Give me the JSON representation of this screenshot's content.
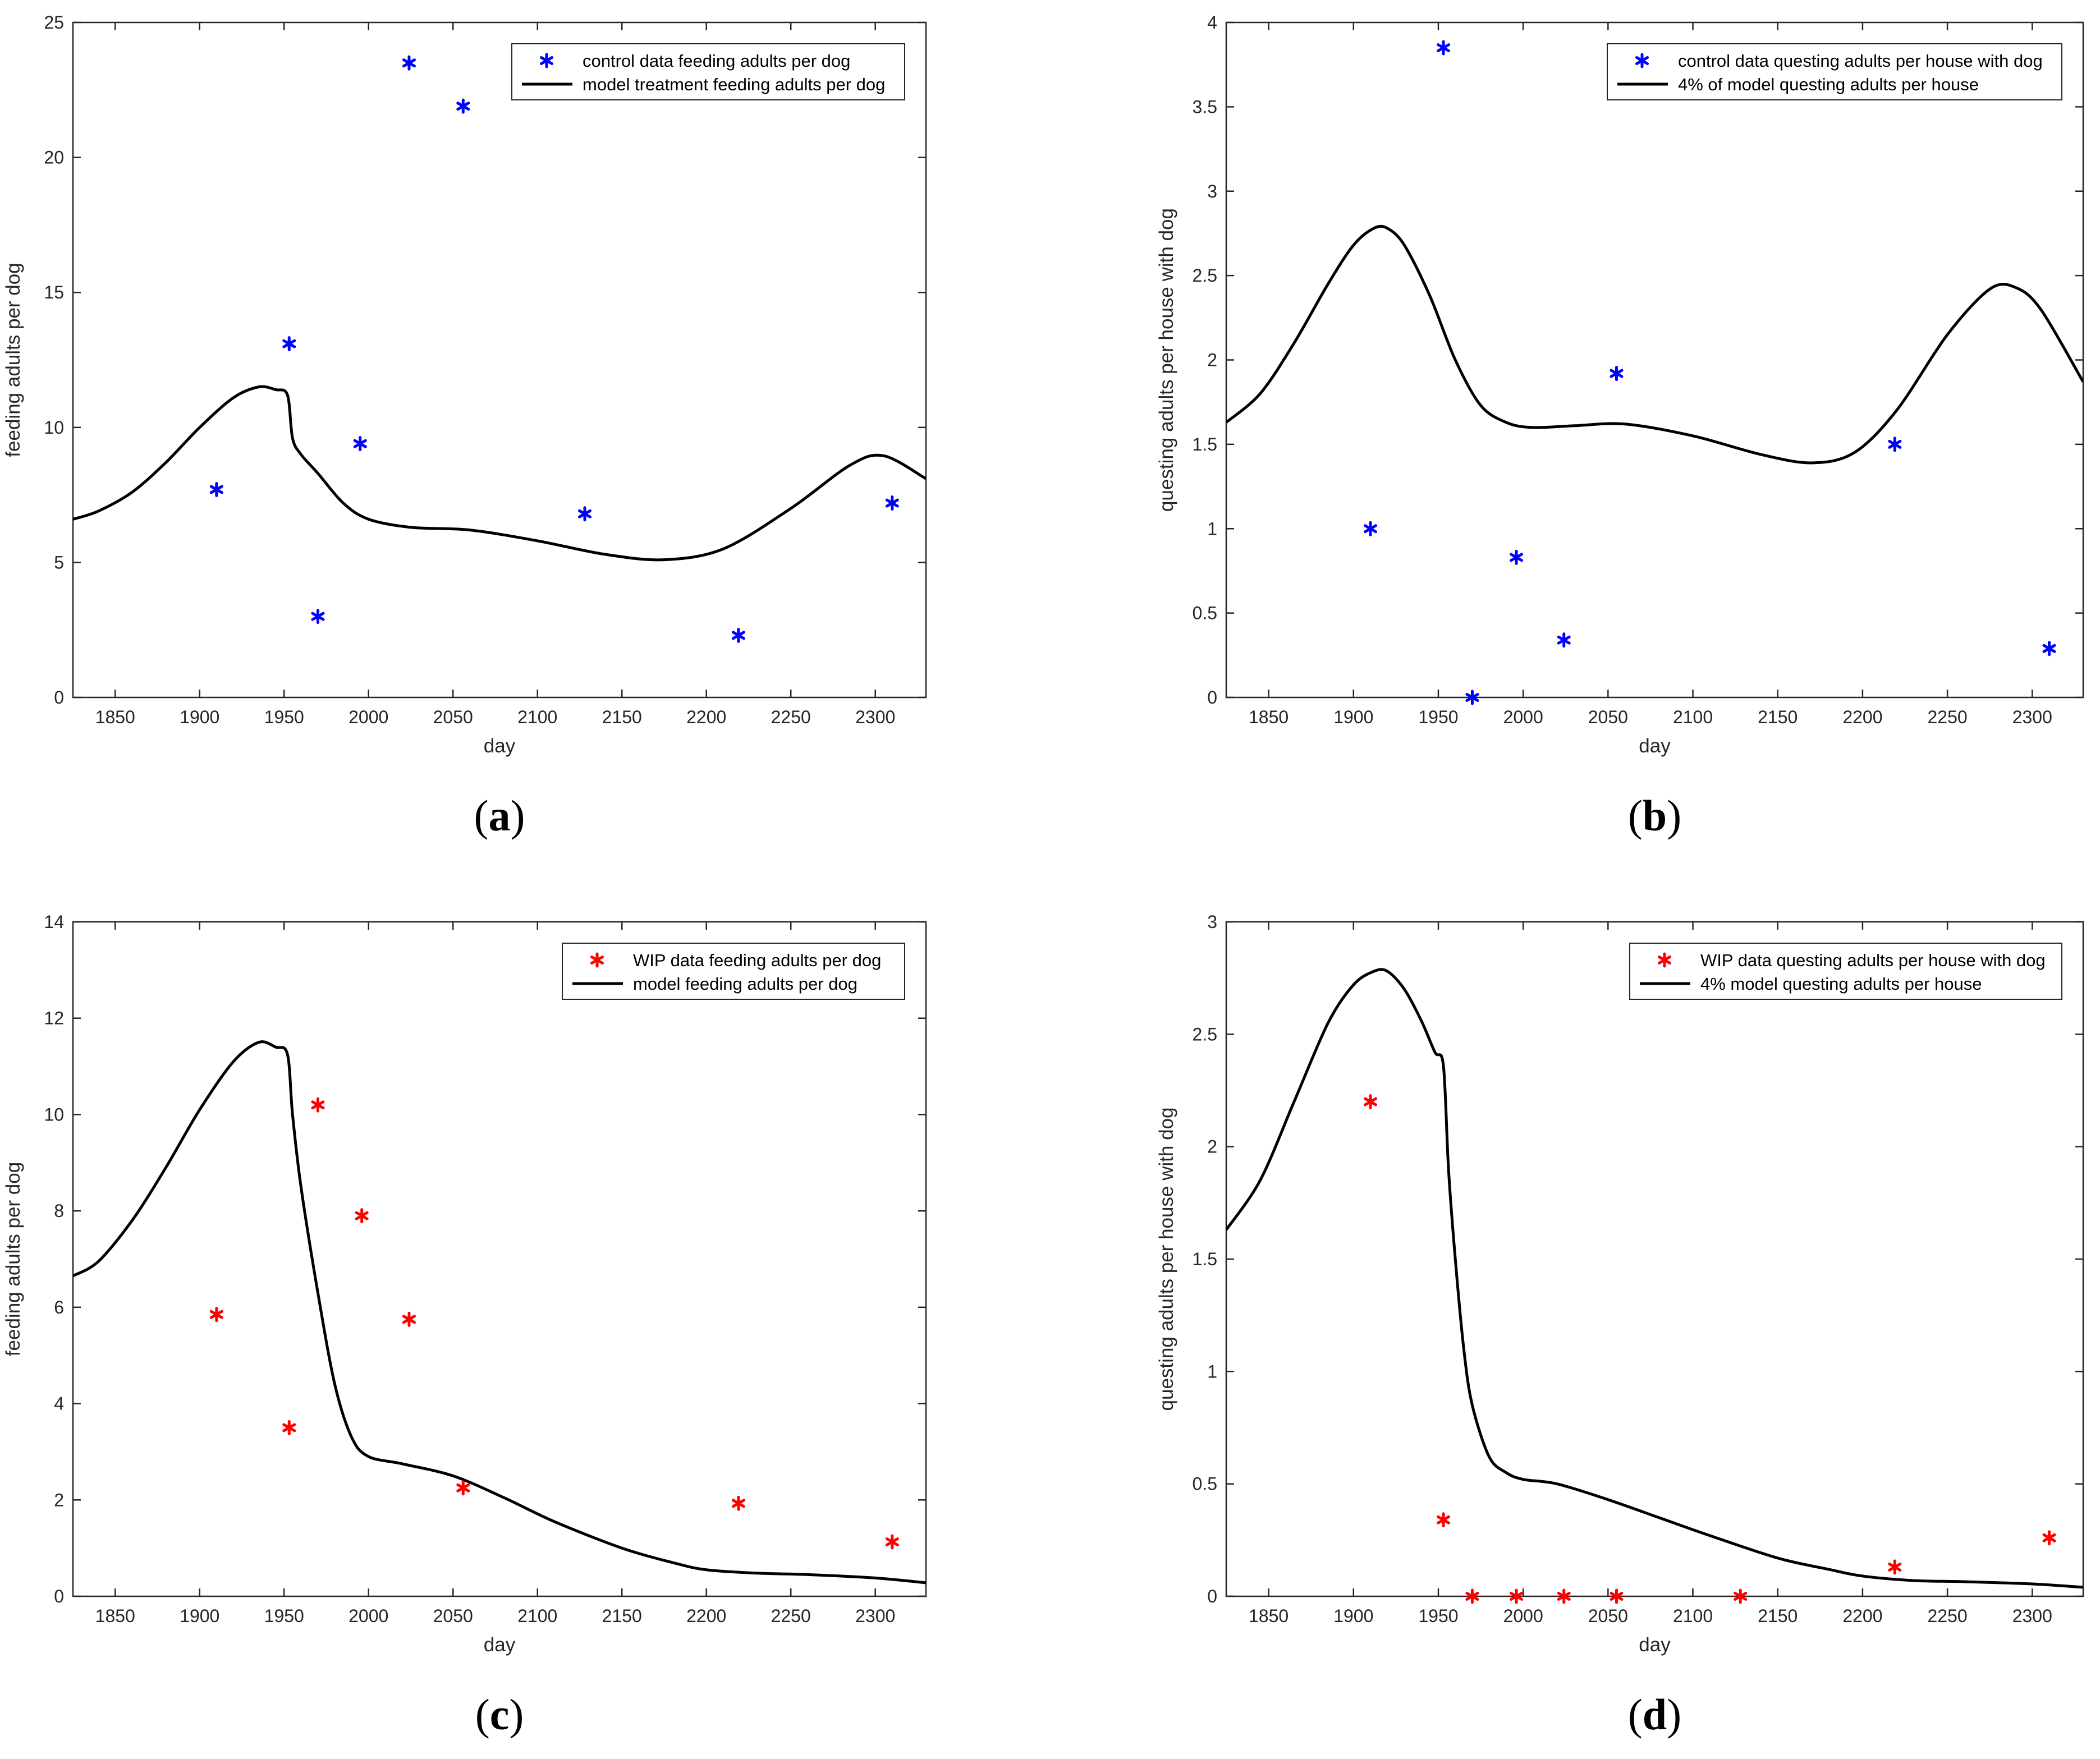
{
  "colors": {
    "control": "#0000ff",
    "wip": "#ff0000",
    "model": "#000000",
    "axis": "#262626"
  },
  "chart_data": [
    {
      "id": "a",
      "type": "line+scatter",
      "panel_label": "a",
      "xlabel": "day",
      "ylabel": "feeding adults per dog",
      "xlim": [
        1825,
        2330
      ],
      "ylim": [
        0,
        25
      ],
      "xticks": [
        1850,
        1900,
        1950,
        2000,
        2050,
        2100,
        2150,
        2200,
        2250,
        2300
      ],
      "yticks": [
        0,
        5,
        10,
        15,
        20,
        25
      ],
      "legend": {
        "placement": "top-right",
        "entries": [
          {
            "label": "control data feeding adults per dog",
            "kind": "marker",
            "color": "#0000ff"
          },
          {
            "label": "model treatment feeding adults per dog",
            "kind": "line",
            "color": "#000000"
          }
        ]
      },
      "scatter": {
        "name": "control data feeding adults per dog",
        "color": "#0000ff",
        "x": [
          1910,
          1953,
          1970,
          1995,
          2024,
          2056,
          2128,
          2219,
          2310
        ],
        "y": [
          7.7,
          13.1,
          3.0,
          9.4,
          23.5,
          21.9,
          6.8,
          2.3,
          7.2
        ]
      },
      "line": {
        "name": "model treatment feeding adults per dog",
        "x": [
          1825,
          1840,
          1860,
          1880,
          1900,
          1920,
          1935,
          1945,
          1952,
          1955,
          1960,
          1970,
          1985,
          2000,
          2025,
          2060,
          2100,
          2140,
          2175,
          2210,
          2250,
          2285,
          2305,
          2330
        ],
        "y": [
          6.6,
          6.9,
          7.6,
          8.7,
          10.0,
          11.1,
          11.5,
          11.4,
          11.2,
          9.6,
          9.0,
          8.3,
          7.2,
          6.6,
          6.3,
          6.2,
          5.8,
          5.3,
          5.1,
          5.5,
          7.0,
          8.6,
          8.95,
          8.1
        ]
      }
    },
    {
      "id": "b",
      "type": "line+scatter",
      "panel_label": "b",
      "xlabel": "day",
      "ylabel": "questing adults per house with dog",
      "xlim": [
        1825,
        2330
      ],
      "ylim": [
        0,
        4
      ],
      "xticks": [
        1850,
        1900,
        1950,
        2000,
        2050,
        2100,
        2150,
        2200,
        2250,
        2300
      ],
      "yticks": [
        0,
        0.5,
        1,
        1.5,
        2,
        2.5,
        3,
        3.5,
        4
      ],
      "legend": {
        "placement": "top-right",
        "entries": [
          {
            "label": "control data questing adults per house with dog",
            "kind": "marker",
            "color": "#0000ff"
          },
          {
            "label": "4% of model questing adults per house",
            "kind": "line",
            "color": "#000000"
          }
        ]
      },
      "scatter": {
        "name": "control data questing adults per house with dog",
        "color": "#0000ff",
        "x": [
          1910,
          1953,
          1970,
          1996,
          2024,
          2055,
          2219,
          2310
        ],
        "y": [
          1.0,
          3.85,
          0.0,
          0.83,
          0.34,
          1.92,
          1.5,
          0.29
        ]
      },
      "line": {
        "name": "4% of model questing adults per house",
        "x": [
          1825,
          1845,
          1865,
          1885,
          1900,
          1912,
          1920,
          1930,
          1945,
          1960,
          1975,
          1990,
          2005,
          2030,
          2060,
          2100,
          2140,
          2170,
          2195,
          2220,
          2250,
          2275,
          2290,
          2305,
          2330
        ],
        "y": [
          1.63,
          1.8,
          2.1,
          2.45,
          2.68,
          2.78,
          2.78,
          2.68,
          2.38,
          2.0,
          1.73,
          1.63,
          1.6,
          1.61,
          1.62,
          1.55,
          1.44,
          1.39,
          1.45,
          1.7,
          2.15,
          2.42,
          2.43,
          2.3,
          1.87
        ]
      }
    },
    {
      "id": "c",
      "type": "line+scatter",
      "panel_label": "c",
      "xlabel": "day",
      "ylabel": "feeding adults per dog",
      "xlim": [
        1825,
        2330
      ],
      "ylim": [
        0,
        14
      ],
      "xticks": [
        1850,
        1900,
        1950,
        2000,
        2050,
        2100,
        2150,
        2200,
        2250,
        2300
      ],
      "yticks": [
        0,
        2,
        4,
        6,
        8,
        10,
        12,
        14
      ],
      "legend": {
        "placement": "top-right",
        "entries": [
          {
            "label": "WIP data feeding adults per dog",
            "kind": "marker",
            "color": "#ff0000"
          },
          {
            "label": "model feeding adults per dog",
            "kind": "line",
            "color": "#000000"
          }
        ]
      },
      "scatter": {
        "name": "WIP data feeding adults per dog",
        "color": "#ff0000",
        "x": [
          1910,
          1953,
          1970,
          1996,
          2024,
          2056,
          2219,
          2310
        ],
        "y": [
          5.85,
          3.5,
          10.2,
          7.9,
          5.75,
          2.25,
          1.93,
          1.13
        ]
      },
      "line": {
        "name": "model feeding adults per dog",
        "x": [
          1825,
          1840,
          1860,
          1880,
          1900,
          1920,
          1935,
          1945,
          1952,
          1955,
          1960,
          1970,
          1980,
          1990,
          2000,
          2020,
          2050,
          2080,
          2110,
          2150,
          2180,
          2200,
          2230,
          2260,
          2300,
          2330
        ],
        "y": [
          6.65,
          6.95,
          7.8,
          8.9,
          10.1,
          11.1,
          11.5,
          11.4,
          11.25,
          10.0,
          8.5,
          6.3,
          4.4,
          3.3,
          2.9,
          2.75,
          2.5,
          2.05,
          1.55,
          1.0,
          0.7,
          0.55,
          0.48,
          0.45,
          0.38,
          0.28
        ]
      }
    },
    {
      "id": "d",
      "type": "line+scatter",
      "panel_label": "d",
      "xlabel": "day",
      "ylabel": "questing adults per house with dog",
      "xlim": [
        1825,
        2330
      ],
      "ylim": [
        0,
        3
      ],
      "xticks": [
        1850,
        1900,
        1950,
        2000,
        2050,
        2100,
        2150,
        2200,
        2250,
        2300
      ],
      "yticks": [
        0,
        0.5,
        1,
        1.5,
        2,
        2.5,
        3
      ],
      "legend": {
        "placement": "top-right",
        "entries": [
          {
            "label": "WIP data questing adults per house with dog",
            "kind": "marker",
            "color": "#ff0000"
          },
          {
            "label": "4% model questing adults per house",
            "kind": "line",
            "color": "#000000"
          }
        ]
      },
      "scatter": {
        "name": "WIP data questing adults per house with dog",
        "color": "#ff0000",
        "x": [
          1910,
          1953,
          1970,
          1996,
          2024,
          2055,
          2128,
          2219,
          2310
        ],
        "y": [
          2.2,
          0.34,
          0.0,
          0.0,
          0.0,
          0.0,
          0.0,
          0.13,
          0.26
        ]
      },
      "line": {
        "name": "4% model questing adults per house",
        "x": [
          1825,
          1845,
          1865,
          1885,
          1900,
          1912,
          1920,
          1930,
          1940,
          1948,
          1953,
          1956,
          1960,
          1965,
          1970,
          1980,
          1990,
          2000,
          2020,
          2050,
          2080,
          2110,
          2150,
          2180,
          2200,
          2230,
          2260,
          2300,
          2330
        ],
        "y": [
          1.63,
          1.85,
          2.2,
          2.55,
          2.72,
          2.78,
          2.78,
          2.7,
          2.56,
          2.42,
          2.36,
          1.9,
          1.5,
          1.1,
          0.85,
          0.62,
          0.55,
          0.52,
          0.5,
          0.43,
          0.35,
          0.27,
          0.17,
          0.12,
          0.09,
          0.07,
          0.065,
          0.055,
          0.04
        ]
      }
    }
  ]
}
